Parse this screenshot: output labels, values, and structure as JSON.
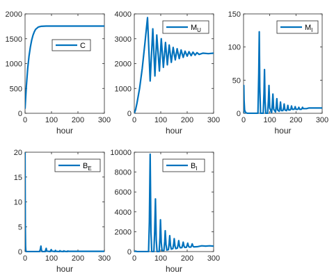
{
  "line_color": "#0072BD",
  "chart_data": [
    {
      "type": "line",
      "xlabel": "hour",
      "xlim": [
        0,
        300
      ],
      "xticks": [
        0,
        100,
        200,
        300
      ],
      "ylim": [
        0,
        2000
      ],
      "yticks": [
        0,
        500,
        1000,
        1500,
        2000
      ],
      "legend": {
        "base": "C",
        "sub": "",
        "position": "top-right"
      },
      "series": [
        {
          "x": [
            0,
            2,
            5,
            10,
            15,
            20,
            25,
            30,
            35,
            40,
            50,
            60,
            80,
            100,
            150,
            200,
            250,
            300
          ],
          "y": [
            90,
            280,
            550,
            900,
            1150,
            1330,
            1470,
            1570,
            1640,
            1690,
            1735,
            1750,
            1755,
            1755,
            1755,
            1755,
            1755,
            1755
          ]
        }
      ]
    },
    {
      "type": "line",
      "xlabel": "hour",
      "xlim": [
        0,
        300
      ],
      "xticks": [
        0,
        100,
        200,
        300
      ],
      "ylim": [
        0,
        4000
      ],
      "yticks": [
        0,
        1000,
        2000,
        3000,
        4000
      ],
      "legend": {
        "base": "M",
        "sub": "U",
        "position": "top-right"
      },
      "series": [
        {
          "x": [
            0,
            5,
            10,
            20,
            30,
            40,
            50,
            60,
            70,
            78,
            85,
            95,
            102,
            110,
            118,
            125,
            132,
            140,
            147,
            155,
            162,
            170,
            177,
            185,
            192,
            200,
            207,
            215,
            222,
            230,
            237,
            245,
            260,
            280,
            300
          ],
          "y": [
            0,
            150,
            400,
            1000,
            1800,
            2800,
            3850,
            1300,
            3400,
            1500,
            3150,
            1700,
            3000,
            1850,
            2850,
            1950,
            2750,
            2050,
            2650,
            2150,
            2600,
            2200,
            2550,
            2250,
            2500,
            2300,
            2480,
            2320,
            2460,
            2340,
            2440,
            2370,
            2420,
            2400,
            2420
          ]
        }
      ]
    },
    {
      "type": "line",
      "xlabel": "hour",
      "xlim": [
        0,
        300
      ],
      "xticks": [
        0,
        100,
        200,
        300
      ],
      "ylim": [
        0,
        150
      ],
      "yticks": [
        0,
        50,
        100,
        150
      ],
      "legend": {
        "base": "M",
        "sub": "I",
        "position": "top-right"
      },
      "series": [
        {
          "x": [
            0,
            1,
            2,
            4,
            8,
            15,
            55,
            58,
            60,
            62,
            65,
            75,
            78,
            80,
            82,
            85,
            92,
            95,
            97,
            100,
            107,
            110,
            112,
            115,
            122,
            125,
            127,
            130,
            136,
            139,
            141,
            144,
            150,
            153,
            155,
            158,
            164,
            167,
            169,
            172,
            178,
            181,
            183,
            186,
            192,
            195,
            197,
            200,
            206,
            209,
            211,
            214,
            220,
            223,
            225,
            228,
            240,
            250,
            260,
            270,
            280,
            290,
            300
          ],
          "y": [
            0,
            42,
            20,
            5,
            1,
            0,
            0,
            60,
            123,
            40,
            0,
            0,
            30,
            66,
            20,
            0,
            0,
            20,
            42,
            8,
            1,
            14,
            29,
            6,
            2,
            11,
            22,
            5,
            3,
            9,
            17,
            4,
            4,
            8,
            14,
            5,
            4,
            7,
            12,
            5,
            5,
            7,
            11,
            6,
            6,
            7,
            10,
            6,
            6,
            7,
            9,
            6,
            6,
            7,
            9,
            7,
            7,
            8,
            8,
            8,
            8,
            8,
            8
          ]
        }
      ]
    },
    {
      "type": "line",
      "xlabel": "hour",
      "xlim": [
        0,
        300
      ],
      "xticks": [
        0,
        100,
        200,
        300
      ],
      "ylim": [
        0,
        20
      ],
      "yticks": [
        0,
        5,
        10,
        15,
        20
      ],
      "legend": {
        "base": "B",
        "sub": "E",
        "position": "top-right"
      },
      "series": [
        {
          "x": [
            0,
            0.5,
            1,
            2,
            3,
            5,
            10,
            55,
            58,
            60,
            62,
            65,
            76,
            78,
            80,
            82,
            95,
            97,
            99,
            101,
            113,
            115,
            117,
            130,
            132,
            134,
            145,
            147,
            149,
            160,
            162,
            164,
            200,
            250,
            300
          ],
          "y": [
            20,
            12,
            5,
            1,
            0.2,
            0,
            0,
            0,
            0.5,
            1.1,
            0.3,
            0,
            0,
            0.3,
            0.65,
            0.1,
            0,
            0.2,
            0.4,
            0.1,
            0,
            0.25,
            0.05,
            0,
            0.18,
            0.05,
            0,
            0.15,
            0.05,
            0,
            0.12,
            0.05,
            0.05,
            0.05,
            0.05
          ]
        }
      ]
    },
    {
      "type": "line",
      "xlabel": "hour",
      "xlim": [
        0,
        300
      ],
      "xticks": [
        0,
        100,
        200,
        300
      ],
      "ylim": [
        0,
        10000
      ],
      "yticks": [
        0,
        2000,
        4000,
        6000,
        8000,
        10000
      ],
      "legend": {
        "base": "B",
        "sub": "I",
        "position": "top-right"
      },
      "series": [
        {
          "x": [
            0,
            5,
            10,
            20,
            54,
            57,
            60,
            63,
            66,
            74,
            77,
            80,
            83,
            86,
            94,
            97,
            99,
            102,
            105,
            112,
            115,
            117,
            120,
            123,
            129,
            132,
            134,
            137,
            140,
            146,
            149,
            151,
            154,
            157,
            163,
            166,
            168,
            171,
            174,
            180,
            183,
            185,
            188,
            191,
            197,
            200,
            202,
            205,
            208,
            214,
            217,
            219,
            222,
            225,
            240,
            255,
            270,
            285,
            300
          ],
          "y": [
            0,
            50,
            0,
            0,
            0,
            3000,
            9800,
            2000,
            0,
            0,
            2000,
            5300,
            1200,
            0,
            0,
            1400,
            3200,
            900,
            100,
            100,
            1000,
            2100,
            700,
            150,
            200,
            900,
            1600,
            600,
            250,
            300,
            800,
            1300,
            550,
            300,
            350,
            750,
            1100,
            550,
            380,
            400,
            700,
            950,
            550,
            420,
            430,
            650,
            850,
            550,
            450,
            450,
            620,
            780,
            550,
            470,
            500,
            580,
            550,
            580,
            550
          ]
        }
      ]
    }
  ]
}
